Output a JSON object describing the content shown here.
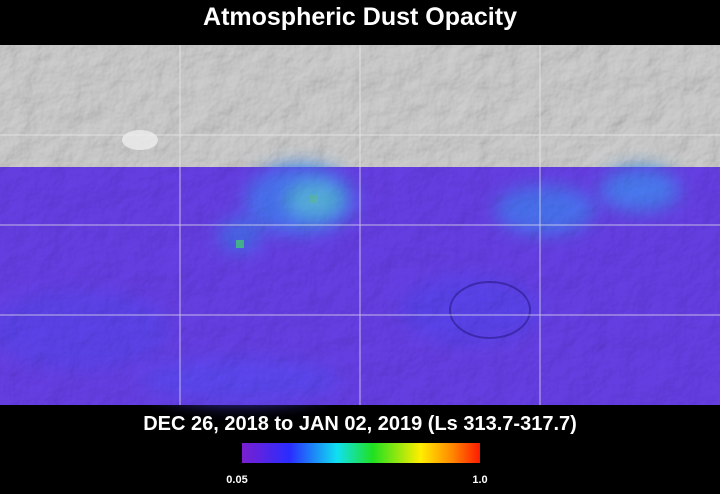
{
  "title": "Atmospheric Dust Opacity",
  "caption": "DEC 26, 2018 to JAN 02, 2019 (Ls 313.7-317.7)",
  "colorbar": {
    "min_label": "0.05",
    "max_label": "1.0"
  }
}
